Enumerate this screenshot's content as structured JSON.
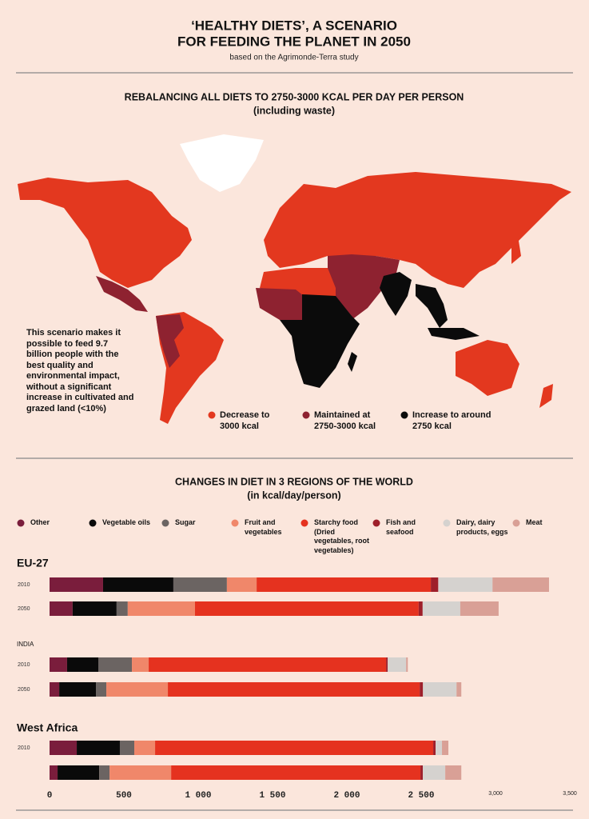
{
  "header": {
    "title": [
      "‘HEALTHY DIETS’, A SCENARIO",
      "FOR FEEDING THE PLANET IN 2050"
    ],
    "subtitle": "based on the Agrimonde-Terra study"
  },
  "map": {
    "title": "REBALANCING ALL DIETS TO 2750-3000 KCAL PER DAY PER PERSON",
    "subtitle": "(including waste)",
    "note": "This scenario makes it possible to feed 9.7 billion people with the best quality and environmental impact, without a significant increase in cultivated and grazed land (<10%)",
    "legend": [
      {
        "label": "Decrease to 3000 kcal",
        "color": "#e3381f"
      },
      {
        "label": "Maintained at 2750-3000 kcal",
        "color": "#8e2230"
      },
      {
        "label": "Increase to around 2750 kcal",
        "color": "#0b0b0b"
      }
    ]
  },
  "chart_data": {
    "type": "bar",
    "orientation": "horizontal",
    "stacked": true,
    "title": "CHANGES IN DIET IN 3 REGIONS OF THE WORLD",
    "subtitle": "(in kcal/day/person)",
    "groups": [
      {
        "name": "EU-27",
        "categories": [
          "2010",
          "2050"
        ]
      },
      {
        "name": "INDIA",
        "categories": [
          "2010",
          "2050"
        ]
      },
      {
        "name": "West Africa",
        "categories": [
          "2010",
          null
        ]
      }
    ],
    "series": [
      {
        "name": "Other",
        "color": "#7a1d3c",
        "values": [
          360,
          155,
          118,
          65,
          183,
          54
        ]
      },
      {
        "name": "Vegetable oils",
        "color": "#0a0a0a",
        "values": [
          473,
          296,
          210,
          247,
          290,
          280
        ]
      },
      {
        "name": "Sugar",
        "color": "#6b6462",
        "values": [
          360,
          75,
          226,
          70,
          97,
          70
        ]
      },
      {
        "name": "Fruit and vegetables",
        "color": "#f0876a",
        "values": [
          200,
          452,
          113,
          414,
          140,
          414
        ]
      },
      {
        "name": "Starchy food (Dried vegetables, root vegetables)",
        "color": "#e5321f",
        "values": [
          1172,
          1505,
          1597,
          1694,
          1871,
          1677
        ]
      },
      {
        "name": "Fish and seafood",
        "color": "#9e1f2a",
        "values": [
          50,
          27,
          11,
          22,
          16,
          16
        ]
      },
      {
        "name": "Dairy, dairy products, eggs",
        "color": "#d5d2cf",
        "values": [
          365,
          253,
          124,
          226,
          43,
          151
        ]
      },
      {
        "name": "Meat",
        "color": "#d9a096",
        "values": [
          380,
          258,
          11,
          32,
          43,
          108
        ]
      }
    ],
    "xlim": [
      0,
      3500
    ],
    "xticks": [
      0,
      500,
      {
        "value": 1000,
        "label": "1 000"
      },
      {
        "value": 1500,
        "label": "1 500"
      },
      {
        "value": 2000,
        "label": "2 000"
      },
      {
        "value": 2500,
        "label": "2 500"
      },
      {
        "value": 3000,
        "label": "3,000"
      },
      {
        "value": 3500,
        "label": "3,500"
      }
    ]
  }
}
